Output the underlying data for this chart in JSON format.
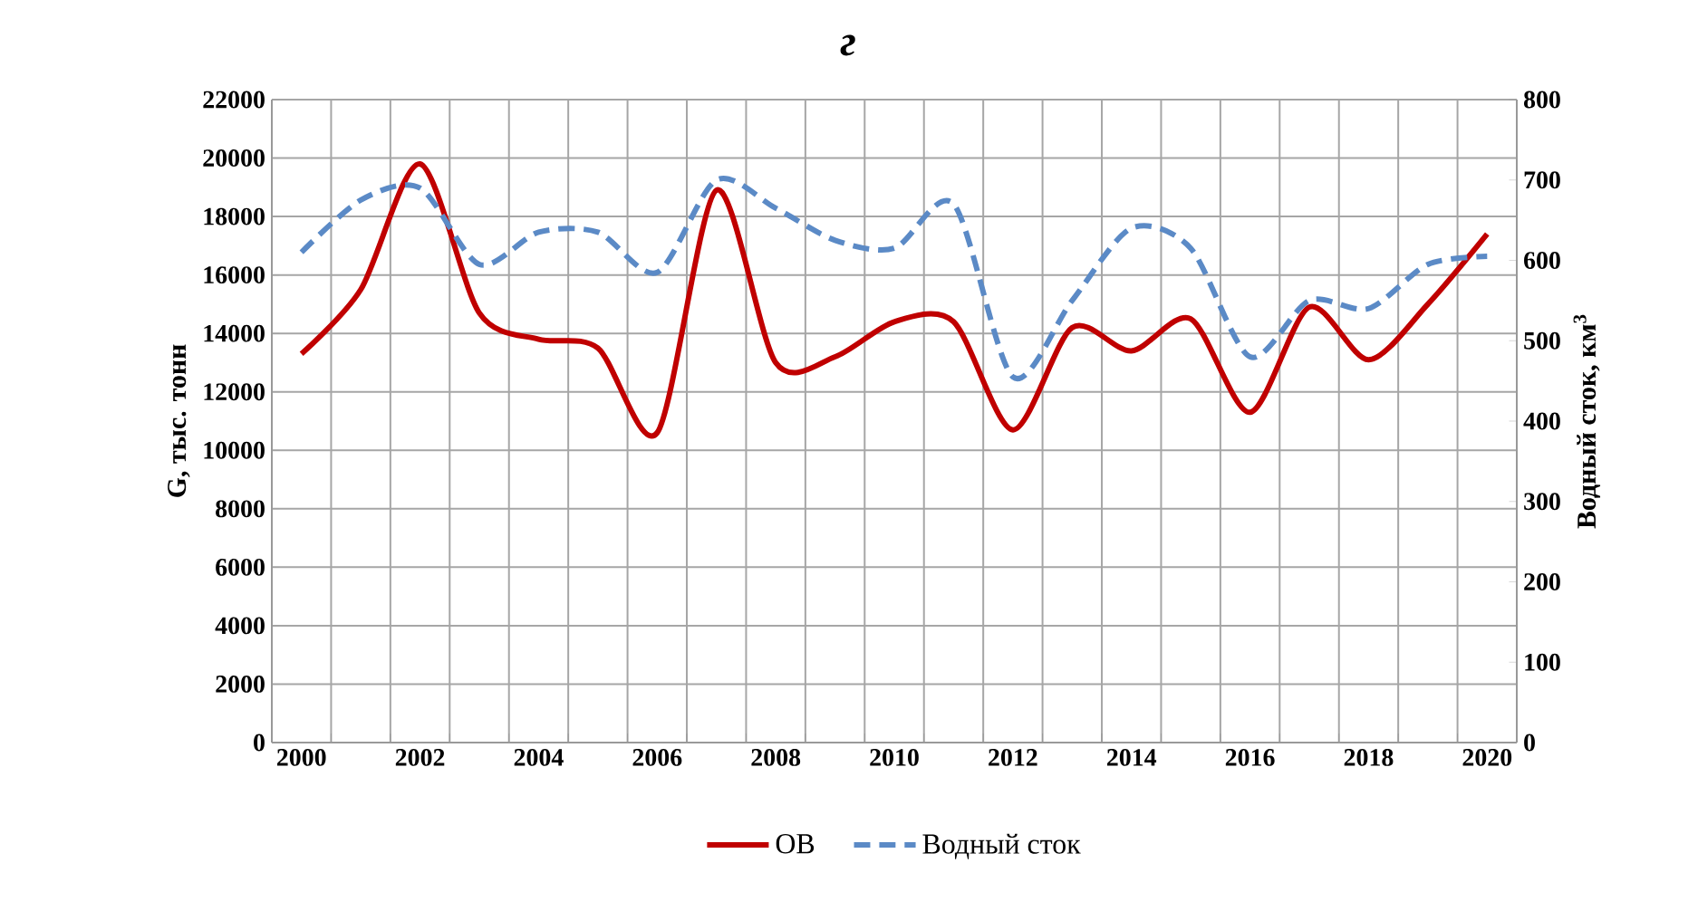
{
  "chart_data": {
    "type": "line",
    "title": "г",
    "ylabel": "G, тыс. тонн",
    "y2label": "Водный сток, км$^{3}$",
    "categories": [
      "2000",
      null,
      "2002",
      null,
      "2004",
      null,
      "2006",
      null,
      "2008",
      null,
      "2010",
      null,
      "2012",
      null,
      "2014",
      null,
      "2016",
      null,
      "2018",
      null,
      "2020"
    ],
    "ylim": [
      0,
      22000
    ],
    "yticks": [
      0,
      2000,
      4000,
      6000,
      8000,
      10000,
      12000,
      14000,
      16000,
      18000,
      20000,
      22000
    ],
    "y2lim": [
      0,
      800
    ],
    "y2ticks": [
      0,
      100,
      200,
      300,
      400,
      500,
      600,
      700,
      800
    ],
    "grid": true,
    "legend": "bottom",
    "series": [
      {
        "name": "ОВ",
        "color": "#c00000",
        "line_style": "solid",
        "values": [
          13300,
          15500,
          19800,
          14700,
          13800,
          13500,
          10600,
          18900,
          13000,
          13200,
          14400,
          14400,
          10700,
          14200,
          13400,
          14500,
          11300,
          14900,
          13100,
          15000,
          17400
        ]
      },
      {
        "name": "Водный сток",
        "color": "#5b8ac6",
        "line_style": "dashed",
        "axis": "y2",
        "values": [
          610,
          675,
          690,
          595,
          635,
          635,
          585,
          700,
          665,
          625,
          615,
          670,
          455,
          550,
          640,
          615,
          480,
          550,
          540,
          595,
          605
        ]
      }
    ]
  }
}
